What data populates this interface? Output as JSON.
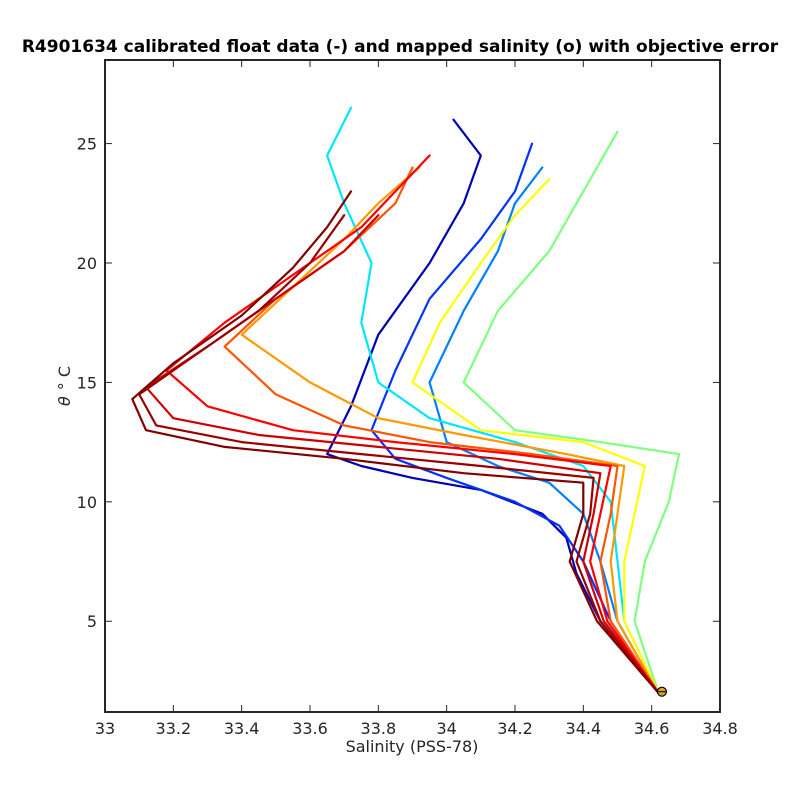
{
  "chart_data": {
    "type": "line",
    "title": "R4901634 calibrated float data (-) and mapped salinity (o) with objective error",
    "xlabel": "Salinity (PSS-78)",
    "ylabel_symbol": "θ",
    "ylabel_unit": "° C",
    "xlim": [
      33.0,
      34.8
    ],
    "ylim": [
      1.2,
      28.5
    ],
    "x_ticks": [
      33.0,
      33.2,
      33.4,
      33.6,
      33.8,
      34.0,
      34.2,
      34.4,
      34.6,
      34.8
    ],
    "x_tick_labels": [
      "33",
      "33.2",
      "33.4",
      "33.6",
      "33.8",
      "34",
      "34.2",
      "34.4",
      "34.6",
      "34.8"
    ],
    "y_ticks": [
      5,
      10,
      15,
      20,
      25
    ],
    "y_tick_labels": [
      "5",
      "10",
      "15",
      "20",
      "25"
    ],
    "grid": false,
    "colormap": "jet",
    "colormap_stops": [
      "#00008f",
      "#0000ff",
      "#0080ff",
      "#00ffff",
      "#80ff80",
      "#ffff00",
      "#ff8000",
      "#ff0000",
      "#800000"
    ],
    "mapped_salinity_marker": {
      "x": 34.63,
      "y": 2.05,
      "color": "#d4a52a"
    },
    "series": [
      {
        "color": "#0000b4",
        "x": [
          34.62,
          34.45,
          34.38,
          34.35,
          34.28,
          34.1,
          33.9,
          33.75,
          33.65,
          33.72,
          33.8,
          33.95,
          34.05,
          34.1,
          34.02
        ],
        "y": [
          2.0,
          5.0,
          7.0,
          8.5,
          9.5,
          10.5,
          11.0,
          11.5,
          12.0,
          14.0,
          17.0,
          20.0,
          22.5,
          24.5,
          26.0
        ]
      },
      {
        "color": "#0033ff",
        "x": [
          34.62,
          34.48,
          34.4,
          34.33,
          34.2,
          34.0,
          33.85,
          33.78,
          33.85,
          33.95,
          34.1,
          34.2,
          34.25
        ],
        "y": [
          2.0,
          5.0,
          7.5,
          9.0,
          10.0,
          11.0,
          11.8,
          13.0,
          15.5,
          18.5,
          21.0,
          23.0,
          25.0
        ]
      },
      {
        "color": "#0080ff",
        "x": [
          34.62,
          34.5,
          34.45,
          34.4,
          34.3,
          34.15,
          34.0,
          33.95,
          34.05,
          34.15,
          34.2,
          34.28
        ],
        "y": [
          2.0,
          5.0,
          7.5,
          9.5,
          10.8,
          11.5,
          12.5,
          15.0,
          18.0,
          20.5,
          22.5,
          24.0
        ]
      },
      {
        "color": "#00e5ff",
        "x": [
          34.62,
          34.52,
          34.5,
          34.48,
          34.4,
          34.2,
          33.95,
          33.8,
          33.75,
          33.78,
          33.7,
          33.65,
          33.72
        ],
        "y": [
          2.0,
          5.0,
          7.5,
          10.0,
          11.5,
          12.5,
          13.5,
          15.0,
          17.5,
          20.0,
          22.5,
          24.5,
          26.5
        ]
      },
      {
        "color": "#80ff80",
        "x": [
          34.62,
          34.55,
          34.58,
          34.65,
          34.68,
          34.45,
          34.2,
          34.05,
          34.15,
          34.3,
          34.4,
          34.5
        ],
        "y": [
          2.0,
          5.0,
          7.5,
          10.0,
          12.0,
          12.5,
          13.0,
          15.0,
          18.0,
          20.5,
          23.0,
          25.5
        ]
      },
      {
        "color": "#ffff00",
        "x": [
          34.62,
          34.52,
          34.52,
          34.55,
          34.58,
          34.4,
          34.1,
          33.9,
          33.98,
          34.1,
          34.2,
          34.3
        ],
        "y": [
          2.0,
          5.0,
          7.5,
          9.5,
          11.5,
          12.5,
          13.0,
          15.0,
          17.5,
          20.0,
          22.0,
          23.5
        ]
      },
      {
        "color": "#ff9900",
        "x": [
          34.62,
          34.5,
          34.48,
          34.5,
          34.52,
          34.35,
          34.05,
          33.8,
          33.6,
          33.4,
          33.55,
          33.7,
          33.8,
          33.92
        ],
        "y": [
          2.0,
          5.0,
          7.5,
          9.5,
          11.5,
          12.0,
          12.8,
          13.5,
          15.0,
          17.0,
          19.0,
          21.0,
          22.5,
          24.0
        ]
      },
      {
        "color": "#ff5500",
        "x": [
          34.62,
          34.48,
          34.45,
          34.48,
          34.5,
          34.25,
          33.95,
          33.7,
          33.5,
          33.35,
          33.5,
          33.7,
          33.85,
          33.9
        ],
        "y": [
          2.0,
          5.0,
          7.5,
          9.5,
          11.5,
          12.0,
          12.5,
          13.2,
          14.5,
          16.5,
          18.5,
          20.5,
          22.5,
          24.0
        ]
      },
      {
        "color": "#ff0000",
        "x": [
          34.62,
          34.47,
          34.42,
          34.45,
          34.48,
          34.2,
          33.85,
          33.55,
          33.3,
          33.18,
          33.35,
          33.55,
          33.75,
          33.85,
          33.95
        ],
        "y": [
          2.0,
          5.0,
          7.5,
          9.5,
          11.5,
          12.0,
          12.5,
          13.0,
          14.0,
          15.5,
          17.5,
          19.5,
          21.5,
          23.0,
          24.5
        ]
      },
      {
        "color": "#cc0000",
        "x": [
          34.62,
          34.46,
          34.4,
          34.43,
          34.45,
          34.15,
          33.8,
          33.45,
          33.2,
          33.12,
          33.3,
          33.5,
          33.7,
          33.8
        ],
        "y": [
          2.0,
          5.0,
          7.5,
          9.5,
          11.2,
          11.8,
          12.3,
          12.8,
          13.5,
          14.8,
          16.5,
          18.5,
          20.5,
          22.0
        ]
      },
      {
        "color": "#990000",
        "x": [
          34.62,
          34.45,
          34.38,
          34.42,
          34.43,
          34.1,
          33.75,
          33.4,
          33.15,
          33.1,
          33.25,
          33.45,
          33.6,
          33.7
        ],
        "y": [
          2.0,
          5.0,
          7.5,
          9.5,
          11.0,
          11.5,
          12.0,
          12.5,
          13.2,
          14.5,
          16.0,
          18.0,
          20.0,
          22.0
        ]
      },
      {
        "color": "#800000",
        "x": [
          34.62,
          34.44,
          34.36,
          34.4,
          34.4,
          34.05,
          33.7,
          33.35,
          33.12,
          33.08,
          33.2,
          33.4,
          33.55,
          33.65,
          33.72
        ],
        "y": [
          2.0,
          5.0,
          7.5,
          9.5,
          10.8,
          11.2,
          11.8,
          12.3,
          13.0,
          14.3,
          15.8,
          17.8,
          19.8,
          21.5,
          23.0
        ]
      }
    ]
  }
}
